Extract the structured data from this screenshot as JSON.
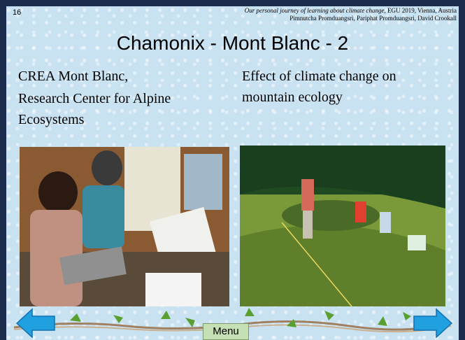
{
  "page_number": "16",
  "citation": {
    "title": "Our personal journey of learning about climate change",
    "venue": ", EGU 2019, Vienna, Austria",
    "authors": "Pimnutcha Promduangsri, Pariphat Promduangsri, David Crookall"
  },
  "title": "Chamonix - Mont Blanc - 2",
  "left_text": [
    "CREA Mont Blanc,",
    "Research Center for Alpine Ecosystems"
  ],
  "right_text": "Effect of climate change on mountain ecology",
  "menu": "Menu"
}
